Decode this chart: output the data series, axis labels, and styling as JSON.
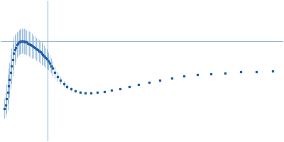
{
  "title": "",
  "xlabel": "",
  "ylabel": "",
  "dot_color": "#1f5fa6",
  "errorbar_color": "#a0c0e0",
  "line_color": "#90bcd8",
  "background_color": "#ffffff",
  "hline_y": 0.58,
  "vline_x": 0.135,
  "q_values": [
    0.01,
    0.013,
    0.016,
    0.019,
    0.022,
    0.025,
    0.028,
    0.031,
    0.034,
    0.037,
    0.04,
    0.043,
    0.046,
    0.049,
    0.052,
    0.055,
    0.058,
    0.061,
    0.064,
    0.067,
    0.07,
    0.074,
    0.078,
    0.082,
    0.086,
    0.09,
    0.094,
    0.098,
    0.102,
    0.106,
    0.11,
    0.114,
    0.118,
    0.122,
    0.126,
    0.13,
    0.134,
    0.138,
    0.142,
    0.146,
    0.15,
    0.156,
    0.164,
    0.172,
    0.182,
    0.192,
    0.204,
    0.216,
    0.23,
    0.245,
    0.262,
    0.28,
    0.3,
    0.322,
    0.346,
    0.372,
    0.4,
    0.43,
    0.462,
    0.496,
    0.532,
    0.57,
    0.61,
    0.652,
    0.696,
    0.742,
    0.79
  ],
  "kratky_values": [
    0.04,
    0.07,
    0.12,
    0.17,
    0.22,
    0.27,
    0.33,
    0.38,
    0.43,
    0.48,
    0.51,
    0.53,
    0.55,
    0.56,
    0.57,
    0.575,
    0.578,
    0.58,
    0.58,
    0.578,
    0.575,
    0.57,
    0.564,
    0.557,
    0.55,
    0.542,
    0.534,
    0.526,
    0.518,
    0.51,
    0.501,
    0.492,
    0.483,
    0.473,
    0.462,
    0.45,
    0.436,
    0.42,
    0.402,
    0.382,
    0.36,
    0.33,
    0.296,
    0.265,
    0.238,
    0.215,
    0.196,
    0.182,
    0.172,
    0.166,
    0.165,
    0.168,
    0.175,
    0.185,
    0.198,
    0.214,
    0.232,
    0.25,
    0.268,
    0.285,
    0.3,
    0.31,
    0.318,
    0.325,
    0.332,
    0.336,
    0.338
  ],
  "error_values": [
    0.08,
    0.1,
    0.12,
    0.14,
    0.14,
    0.14,
    0.14,
    0.14,
    0.13,
    0.13,
    0.12,
    0.11,
    0.1,
    0.1,
    0.1,
    0.1,
    0.1,
    0.1,
    0.1,
    0.1,
    0.1,
    0.1,
    0.1,
    0.1,
    0.1,
    0.1,
    0.09,
    0.09,
    0.09,
    0.09,
    0.09,
    0.09,
    0.09,
    0.09,
    0.08,
    0.08,
    0.08,
    0.07,
    0.07,
    0.06,
    0.06,
    0.05,
    0.04,
    0.03,
    0.025,
    0.02,
    0.016,
    0.013,
    0.01,
    0.008,
    0.007,
    0.006,
    0.005,
    0.004,
    0.004,
    0.003,
    0.003,
    0.003,
    0.002,
    0.002,
    0.002,
    0.002,
    0.002,
    0.002,
    0.002,
    0.002,
    0.002
  ],
  "xlim": [
    0.0,
    0.82
  ],
  "ylim": [
    -0.22,
    0.9
  ],
  "figsize": [
    4.0,
    2.0
  ],
  "dpi": 100
}
